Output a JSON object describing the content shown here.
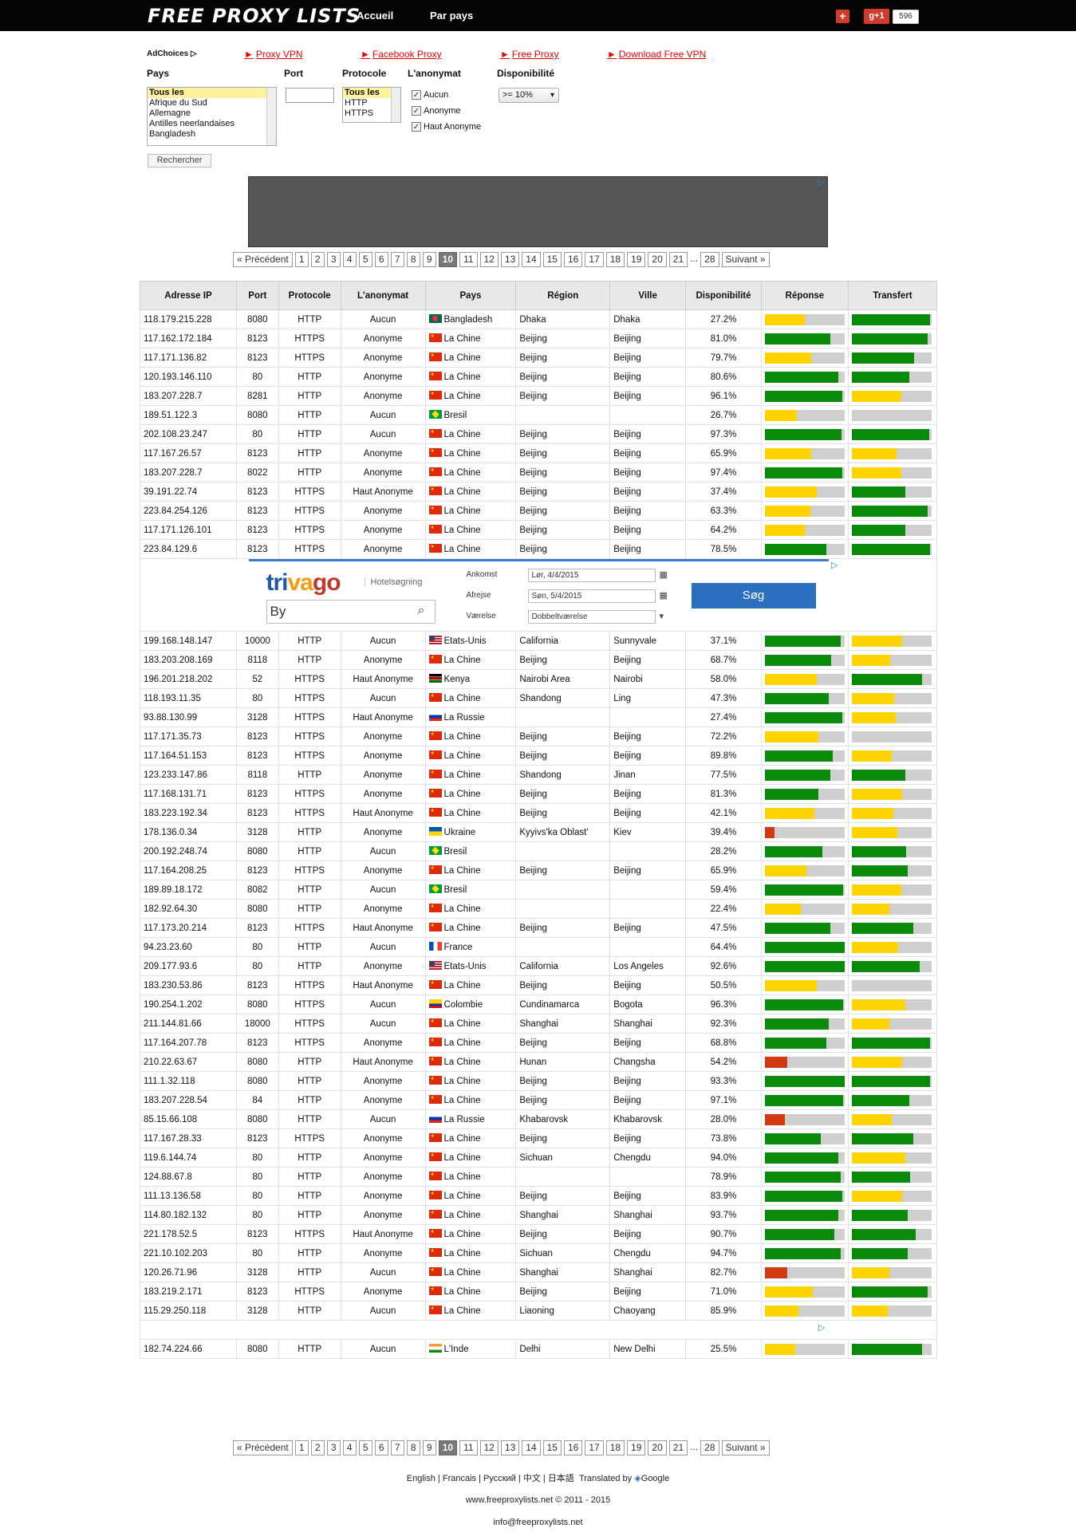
{
  "header": {
    "logo": "FREE PROXY LISTS",
    "nav": [
      "Accueil",
      "Par pays"
    ],
    "gplus_label": "g+1",
    "gplus_count": "596"
  },
  "ads": {
    "adchoices": "AdChoices",
    "links": [
      "Proxy VPN",
      "Facebook Proxy",
      "Free Proxy",
      "Download Free VPN"
    ]
  },
  "filters": {
    "pays_label": "Pays",
    "port_label": "Port",
    "protocole_label": "Protocole",
    "anonymat_label": "L'anonymat",
    "disponibilite_label": "Disponibilité",
    "pays_options": [
      "Tous les",
      "Afrique du Sud",
      "Allemagne",
      "Antilles neerlandaises",
      "Bangladesh"
    ],
    "protocole_options": [
      "Tous les",
      "HTTP",
      "HTTPS"
    ],
    "anonymat_options": [
      "Aucun",
      "Anonyme",
      "Haut Anonyme"
    ],
    "disponibilite_value": ">= 10%",
    "search_button": "Rechercher"
  },
  "pagination": {
    "prev": "« Précédent",
    "pages": [
      "1",
      "2",
      "3",
      "4",
      "5",
      "6",
      "7",
      "8",
      "9",
      "10",
      "11",
      "12",
      "13",
      "14",
      "15",
      "16",
      "17",
      "18",
      "19",
      "20",
      "21"
    ],
    "dots": "...",
    "last": "28",
    "next": "Suivant »",
    "current": "10"
  },
  "table": {
    "headers": [
      "Adresse IP",
      "Port",
      "Protocole",
      "L'anonymat",
      "Pays",
      "Région",
      "Ville",
      "Disponibilité",
      "Réponse",
      "Transfert"
    ],
    "rows": [
      [
        "118.179.215.228",
        "8080",
        "HTTP",
        "Aucun",
        "Bangladesh",
        "Dhaka",
        "Dhaka",
        "27.2%",
        "Y0.5",
        "G0.98",
        "bd"
      ],
      [
        "117.162.172.184",
        "8123",
        "HTTPS",
        "Anonyme",
        "La Chine",
        "Beijing",
        "Beijing",
        "81.0%",
        "G0.82",
        "G0.95",
        "cn"
      ],
      [
        "117.171.136.82",
        "8123",
        "HTTPS",
        "Anonyme",
        "La Chine",
        "Beijing",
        "Beijing",
        "79.7%",
        "Y0.58",
        "G0.78",
        "cn"
      ],
      [
        "120.193.146.110",
        "80",
        "HTTP",
        "Anonyme",
        "La Chine",
        "Beijing",
        "Beijing",
        "80.6%",
        "G0.92",
        "G0.72",
        "cn"
      ],
      [
        "183.207.228.7",
        "8281",
        "HTTP",
        "Anonyme",
        "La Chine",
        "Beijing",
        "Beijing",
        "96.1%",
        "G0.97",
        "Y0.62",
        "cn"
      ],
      [
        "189.51.122.3",
        "8080",
        "HTTP",
        "Aucun",
        "Bresil",
        "",
        "",
        "26.7%",
        "Y0.4",
        "X0",
        "br"
      ],
      [
        "202.108.23.247",
        "80",
        "HTTP",
        "Aucun",
        "La Chine",
        "Beijing",
        "Beijing",
        "97.3%",
        "G0.96",
        "G0.97",
        "cn"
      ],
      [
        "117.167.26.57",
        "8123",
        "HTTP",
        "Anonyme",
        "La Chine",
        "Beijing",
        "Beijing",
        "65.9%",
        "Y0.58",
        "Y0.56",
        "cn"
      ],
      [
        "183.207.228.7",
        "8022",
        "HTTP",
        "Anonyme",
        "La Chine",
        "Beijing",
        "Beijing",
        "97.4%",
        "G0.97",
        "Y0.62",
        "cn"
      ],
      [
        "39.191.22.74",
        "8123",
        "HTTPS",
        "Haut Anonyme",
        "La Chine",
        "Beijing",
        "Beijing",
        "37.4%",
        "Y0.65",
        "G0.67",
        "cn"
      ],
      [
        "223.84.254.126",
        "8123",
        "HTTPS",
        "Anonyme",
        "La Chine",
        "Beijing",
        "Beijing",
        "63.3%",
        "Y0.57",
        "G0.95",
        "cn"
      ],
      [
        "117.171.126.101",
        "8123",
        "HTTPS",
        "Anonyme",
        "La Chine",
        "Beijing",
        "Beijing",
        "64.2%",
        "Y0.5",
        "G0.67",
        "cn"
      ],
      [
        "223.84.129.6",
        "8123",
        "HTTPS",
        "Anonyme",
        "La Chine",
        "Beijing",
        "Beijing",
        "78.5%",
        "G0.77",
        "G0.98",
        "cn"
      ],
      [
        "199.168.148.147",
        "10000",
        "HTTP",
        "Aucun",
        "Etats-Unis",
        "California",
        "Sunnyvale",
        "37.1%",
        "G0.95",
        "Y0.63",
        "us"
      ],
      [
        "183.203.208.169",
        "8118",
        "HTTP",
        "Anonyme",
        "La Chine",
        "Beijing",
        "Beijing",
        "68.7%",
        "G0.83",
        "Y0.48",
        "cn"
      ],
      [
        "196.201.218.202",
        "52",
        "HTTPS",
        "Haut Anonyme",
        "Kenya",
        "Nairobi Area",
        "Nairobi",
        "58.0%",
        "Y0.65",
        "G0.88",
        "ke"
      ],
      [
        "118.193.11.35",
        "80",
        "HTTPS",
        "Aucun",
        "La Chine",
        "Shandong",
        "Ling",
        "47.3%",
        "G0.8",
        "Y0.53",
        "cn"
      ],
      [
        "93.88.130.99",
        "3128",
        "HTTPS",
        "Haut Anonyme",
        "La Russie",
        "",
        "",
        "27.4%",
        "G0.97",
        "Y0.55",
        "ru"
      ],
      [
        "117.171.35.73",
        "8123",
        "HTTPS",
        "Anonyme",
        "La Chine",
        "Beijing",
        "Beijing",
        "72.2%",
        "Y0.67",
        "X0",
        "cn"
      ],
      [
        "117.164.51.153",
        "8123",
        "HTTPS",
        "Anonyme",
        "La Chine",
        "Beijing",
        "Beijing",
        "89.8%",
        "G0.85",
        "Y0.5",
        "cn"
      ],
      [
        "123.233.147.86",
        "8118",
        "HTTP",
        "Anonyme",
        "La Chine",
        "Shandong",
        "Jinan",
        "77.5%",
        "G0.82",
        "G0.67",
        "cn"
      ],
      [
        "117.168.131.71",
        "8123",
        "HTTPS",
        "Anonyme",
        "La Chine",
        "Beijing",
        "Beijing",
        "81.3%",
        "G0.67",
        "Y0.63",
        "cn"
      ],
      [
        "183.223.192.34",
        "8123",
        "HTTPS",
        "Haut Anonyme",
        "La Chine",
        "Beijing",
        "Beijing",
        "42.1%",
        "Y0.62",
        "Y0.52",
        "cn"
      ],
      [
        "178.136.0.34",
        "3128",
        "HTTP",
        "Anonyme",
        "Ukraine",
        "Kyyivs'ka Oblast'",
        "Kiev",
        "39.4%",
        "R0.12",
        "Y0.57",
        "ua"
      ],
      [
        "200.192.248.74",
        "8080",
        "HTTP",
        "Aucun",
        "Bresil",
        "",
        "",
        "28.2%",
        "G0.72",
        "G0.68",
        "br"
      ],
      [
        "117.164.208.25",
        "8123",
        "HTTPS",
        "Anonyme",
        "La Chine",
        "Beijing",
        "Beijing",
        "65.9%",
        "Y0.52",
        "G0.7",
        "cn"
      ],
      [
        "189.89.18.172",
        "8082",
        "HTTP",
        "Aucun",
        "Bresil",
        "",
        "",
        "59.4%",
        "G0.98",
        "Y0.62",
        "br"
      ],
      [
        "182.92.64.30",
        "8080",
        "HTTP",
        "Anonyme",
        "La Chine",
        "",
        "",
        "22.4%",
        "Y0.45",
        "Y0.47",
        "cn"
      ],
      [
        "117.173.20.214",
        "8123",
        "HTTPS",
        "Haut Anonyme",
        "La Chine",
        "Beijing",
        "Beijing",
        "47.5%",
        "G0.82",
        "G0.77",
        "cn"
      ],
      [
        "94.23.23.60",
        "80",
        "HTTP",
        "Aucun",
        "France",
        "",
        "",
        "64.4%",
        "G1.0",
        "Y0.58",
        "fr"
      ],
      [
        "209.177.93.6",
        "80",
        "HTTP",
        "Anonyme",
        "Etats-Unis",
        "California",
        "Los Angeles",
        "92.6%",
        "G1.0",
        "G0.85",
        "us"
      ],
      [
        "183.230.53.86",
        "8123",
        "HTTPS",
        "Haut Anonyme",
        "La Chine",
        "Beijing",
        "Beijing",
        "50.5%",
        "Y0.65",
        "X0",
        "cn"
      ],
      [
        "190.254.1.202",
        "8080",
        "HTTPS",
        "Aucun",
        "Colombie",
        "Cundinamarca",
        "Bogota",
        "96.3%",
        "G0.98",
        "Y0.67",
        "co"
      ],
      [
        "211.144.81.66",
        "18000",
        "HTTPS",
        "Aucun",
        "La Chine",
        "Shanghai",
        "Shanghai",
        "92.3%",
        "G0.8",
        "Y0.47",
        "cn"
      ],
      [
        "117.164.207.78",
        "8123",
        "HTTPS",
        "Anonyme",
        "La Chine",
        "Beijing",
        "Beijing",
        "68.8%",
        "G0.77",
        "G0.98",
        "cn"
      ],
      [
        "210.22.63.67",
        "8080",
        "HTTP",
        "Haut Anonyme",
        "La Chine",
        "Hunan",
        "Changsha",
        "54.2%",
        "R0.28",
        "Y0.63",
        "cn"
      ],
      [
        "111.1.32.118",
        "8080",
        "HTTP",
        "Anonyme",
        "La Chine",
        "Beijing",
        "Beijing",
        "93.3%",
        "G1.0",
        "G0.98",
        "cn"
      ],
      [
        "183.207.228.54",
        "84",
        "HTTP",
        "Anonyme",
        "La Chine",
        "Beijing",
        "Beijing",
        "97.1%",
        "G0.98",
        "G0.72",
        "cn"
      ],
      [
        "85.15.66.108",
        "8080",
        "HTTP",
        "Aucun",
        "La Russie",
        "Khabarovsk",
        "Khabarovsk",
        "28.0%",
        "R0.25",
        "Y0.5",
        "ru"
      ],
      [
        "117.167.28.33",
        "8123",
        "HTTPS",
        "Anonyme",
        "La Chine",
        "Beijing",
        "Beijing",
        "73.8%",
        "G0.7",
        "G0.77",
        "cn"
      ],
      [
        "119.6.144.74",
        "80",
        "HTTP",
        "Anonyme",
        "La Chine",
        "Sichuan",
        "Chengdu",
        "94.0%",
        "G0.92",
        "Y0.67",
        "cn"
      ],
      [
        "124.88.67.8",
        "80",
        "HTTP",
        "Anonyme",
        "La Chine",
        "",
        "",
        "78.9%",
        "G0.95",
        "G0.73",
        "cn"
      ],
      [
        "111.13.136.58",
        "80",
        "HTTP",
        "Anonyme",
        "La Chine",
        "Beijing",
        "Beijing",
        "83.9%",
        "G0.97",
        "Y0.63",
        "cn"
      ],
      [
        "114.80.182.132",
        "80",
        "HTTP",
        "Anonyme",
        "La Chine",
        "Shanghai",
        "Shanghai",
        "93.7%",
        "G0.92",
        "G0.7",
        "cn"
      ],
      [
        "221.178.52.5",
        "8123",
        "HTTPS",
        "Haut Anonyme",
        "La Chine",
        "Beijing",
        "Beijing",
        "90.7%",
        "G0.87",
        "G0.8",
        "cn"
      ],
      [
        "221.10.102.203",
        "80",
        "HTTP",
        "Anonyme",
        "La Chine",
        "Sichuan",
        "Chengdu",
        "94.7%",
        "G0.95",
        "G0.7",
        "cn"
      ],
      [
        "120.26.71.96",
        "3128",
        "HTTP",
        "Aucun",
        "La Chine",
        "Shanghai",
        "Shanghai",
        "82.7%",
        "R0.28",
        "Y0.47",
        "cn"
      ],
      [
        "183.219.2.171",
        "8123",
        "HTTPS",
        "Anonyme",
        "La Chine",
        "Beijing",
        "Beijing",
        "71.0%",
        "Y0.6",
        "G0.95",
        "cn"
      ],
      [
        "115.29.250.118",
        "3128",
        "HTTP",
        "Aucun",
        "La Chine",
        "Liaoning",
        "Chaoyang",
        "85.9%",
        "Y0.42",
        "Y0.45",
        "cn"
      ],
      [
        "182.74.224.66",
        "8080",
        "HTTP",
        "Aucun",
        "L'Inde",
        "Delhi",
        "New Delhi",
        "25.5%",
        "Y0.38",
        "G0.88",
        "in"
      ]
    ]
  },
  "trivago": {
    "logo": "trivago",
    "subtitle": "Hotelsøgning",
    "city_placeholder": "By",
    "ankomst_label": "Ankomst",
    "ankomst_value": "Lør, 4/4/2015",
    "afrejse_label": "Afrejse",
    "afrejse_value": "Søn, 5/4/2015",
    "vaerelse_label": "Værelse",
    "vaerelse_value": "Dobbeltværelse",
    "search": "Søg"
  },
  "footer": {
    "languages": [
      "English",
      "Francais",
      "Русский",
      "中文",
      "日本語"
    ],
    "translated_by": "Translated by",
    "google": "Google",
    "copyright": "www.freeproxylists.net © 2011 - 2015",
    "email": "info@freeproxylists.net"
  },
  "colors": {
    "green": "#0a8a0a",
    "yellow": "#ffd400",
    "red": "#d23a10",
    "track": "#cfcfcf"
  }
}
